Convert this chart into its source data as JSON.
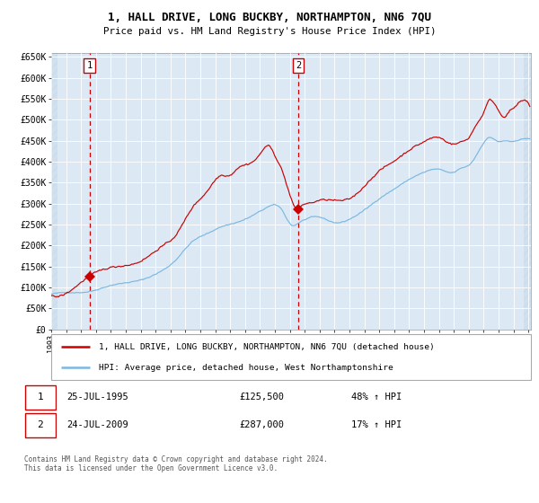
{
  "title_line1": "1, HALL DRIVE, LONG BUCKBY, NORTHAMPTON, NN6 7QU",
  "title_line2": "Price paid vs. HM Land Registry's House Price Index (HPI)",
  "ylabel_values": [
    "£0",
    "£50K",
    "£100K",
    "£150K",
    "£200K",
    "£250K",
    "£300K",
    "£350K",
    "£400K",
    "£450K",
    "£500K",
    "£550K",
    "£600K",
    "£650K"
  ],
  "ylim": [
    0,
    660000
  ],
  "yticks": [
    0,
    50000,
    100000,
    150000,
    200000,
    250000,
    300000,
    350000,
    400000,
    450000,
    500000,
    550000,
    600000,
    650000
  ],
  "sale1_date": "1995-07-25",
  "sale1_price": 125500,
  "sale1_label": "25-JUL-1995",
  "sale1_price_str": "£125,500",
  "sale1_pct": "48% ↑ HPI",
  "sale2_date": "2009-07-24",
  "sale2_price": 287000,
  "sale2_label": "24-JUL-2009",
  "sale2_price_str": "£287,000",
  "sale2_pct": "17% ↑ HPI",
  "legend1": "1, HALL DRIVE, LONG BUCKBY, NORTHAMPTON, NN6 7QU (detached house)",
  "legend2": "HPI: Average price, detached house, West Northamptonshire",
  "footer": "Contains HM Land Registry data © Crown copyright and database right 2024.\nThis data is licensed under the Open Government Licence v3.0.",
  "hpi_color": "#7bb8e0",
  "price_color": "#cc0000",
  "bg_color": "#dce9f5",
  "grid_color": "#ffffff",
  "dashed_color": "#cc0000",
  "marker_color": "#cc0000",
  "box_color": "#cc0000",
  "hatch_color": "#c8d8e8"
}
